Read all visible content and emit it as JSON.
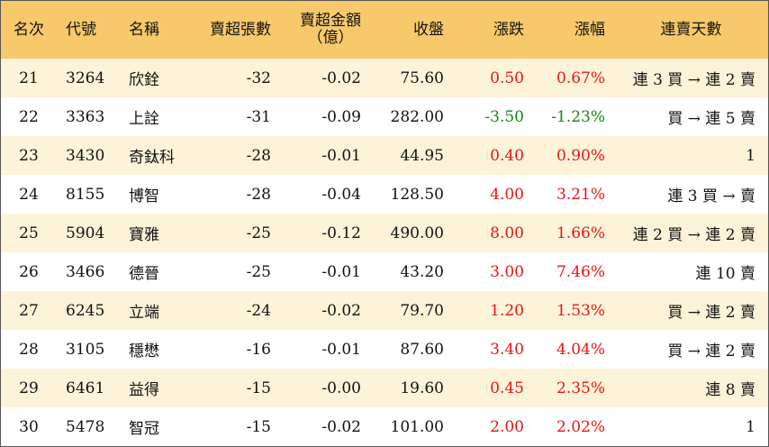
{
  "colors": {
    "header_bg": "#f7c96a",
    "odd_row_bg": "#fdf3d9",
    "up": "#e81515",
    "down": "#11881a"
  },
  "header": {
    "rank": "名次",
    "code": "代號",
    "name": "名稱",
    "net_sell_lots": "賣超張數",
    "net_sell_amount": "賣超金額",
    "net_sell_amount_unit": "（億）",
    "close": "收盤",
    "change": "漲跌",
    "change_pct": "漲幅",
    "streak": "連賣天數"
  },
  "rows": [
    {
      "rank": "21",
      "code": "3264",
      "name": "欣銓",
      "lots": "-32",
      "amount": "-0.02",
      "close": "75.60",
      "change": "0.50",
      "pct": "0.67%",
      "streak": "連 3 買 → 連 2 賣",
      "dir": "up"
    },
    {
      "rank": "22",
      "code": "3363",
      "name": "上詮",
      "lots": "-31",
      "amount": "-0.09",
      "close": "282.00",
      "change": "-3.50",
      "pct": "-1.23%",
      "streak": "買 → 連 5 賣",
      "dir": "down"
    },
    {
      "rank": "23",
      "code": "3430",
      "name": "奇鈦科",
      "lots": "-28",
      "amount": "-0.01",
      "close": "44.95",
      "change": "0.40",
      "pct": "0.90%",
      "streak": "1",
      "dir": "up"
    },
    {
      "rank": "24",
      "code": "8155",
      "name": "博智",
      "lots": "-28",
      "amount": "-0.04",
      "close": "128.50",
      "change": "4.00",
      "pct": "3.21%",
      "streak": "連 3 買 → 賣",
      "dir": "up"
    },
    {
      "rank": "25",
      "code": "5904",
      "name": "寶雅",
      "lots": "-25",
      "amount": "-0.12",
      "close": "490.00",
      "change": "8.00",
      "pct": "1.66%",
      "streak": "連 2 買 → 連 2 賣",
      "dir": "up"
    },
    {
      "rank": "26",
      "code": "3466",
      "name": "德晉",
      "lots": "-25",
      "amount": "-0.01",
      "close": "43.20",
      "change": "3.00",
      "pct": "7.46%",
      "streak": "連 10 賣",
      "dir": "up"
    },
    {
      "rank": "27",
      "code": "6245",
      "name": "立端",
      "lots": "-24",
      "amount": "-0.02",
      "close": "79.70",
      "change": "1.20",
      "pct": "1.53%",
      "streak": "買 → 連 2 賣",
      "dir": "up"
    },
    {
      "rank": "28",
      "code": "3105",
      "name": "穩懋",
      "lots": "-16",
      "amount": "-0.01",
      "close": "87.60",
      "change": "3.40",
      "pct": "4.04%",
      "streak": "買 → 連 2 賣",
      "dir": "up"
    },
    {
      "rank": "29",
      "code": "6461",
      "name": "益得",
      "lots": "-15",
      "amount": "-0.00",
      "close": "19.60",
      "change": "0.45",
      "pct": "2.35%",
      "streak": "連 8 賣",
      "dir": "up"
    },
    {
      "rank": "30",
      "code": "5478",
      "name": "智冠",
      "lots": "-15",
      "amount": "-0.02",
      "close": "101.00",
      "change": "2.00",
      "pct": "2.02%",
      "streak": "1",
      "dir": "up"
    }
  ]
}
